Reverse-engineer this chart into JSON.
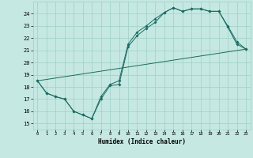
{
  "xlabel": "Humidex (Indice chaleur)",
  "xlim": [
    -0.5,
    23.5
  ],
  "ylim": [
    14.5,
    25.0
  ],
  "yticks": [
    15,
    16,
    17,
    18,
    19,
    20,
    21,
    22,
    23,
    24
  ],
  "xticks": [
    0,
    1,
    2,
    3,
    4,
    5,
    6,
    7,
    8,
    9,
    10,
    11,
    12,
    13,
    14,
    15,
    16,
    17,
    18,
    19,
    20,
    21,
    22,
    23
  ],
  "background_color": "#c5e8e2",
  "grid_color": "#9fcfc8",
  "line_color": "#1a6b60",
  "line1_x": [
    0,
    1,
    2,
    3,
    4,
    5,
    6,
    7,
    8,
    9,
    10,
    11,
    12,
    13,
    14,
    15,
    16,
    17,
    18,
    19,
    20,
    21,
    22,
    23
  ],
  "line1_y": [
    18.5,
    17.5,
    17.2,
    17.0,
    16.0,
    15.7,
    15.4,
    17.0,
    18.1,
    18.2,
    21.3,
    22.2,
    22.8,
    23.3,
    24.1,
    24.5,
    24.2,
    24.4,
    24.4,
    24.2,
    24.2,
    22.9,
    21.5,
    21.1
  ],
  "line2_x": [
    0,
    1,
    2,
    3,
    4,
    5,
    6,
    7,
    8,
    9,
    10,
    11,
    12,
    13,
    14,
    15,
    16,
    17,
    18,
    19,
    20,
    21,
    22,
    23
  ],
  "line2_y": [
    18.5,
    17.5,
    17.2,
    17.0,
    16.0,
    15.7,
    15.4,
    17.2,
    18.2,
    18.5,
    21.5,
    22.5,
    23.0,
    23.6,
    24.1,
    24.5,
    24.2,
    24.4,
    24.4,
    24.2,
    24.2,
    23.0,
    21.7,
    21.1
  ],
  "line3_x": [
    0,
    23
  ],
  "line3_y": [
    18.5,
    21.1
  ],
  "markersize": 2.0
}
